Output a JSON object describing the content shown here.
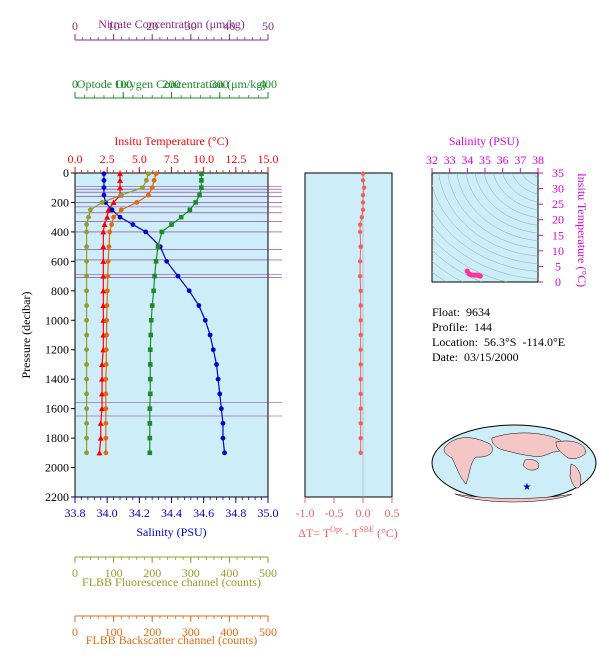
{
  "info": {
    "float_line": "Float:  9634",
    "profile_line": "Profile:  144",
    "location_line": "Location:  56.3°S  -114.0°E",
    "date_line": "Date:  03/15/2000"
  },
  "colors": {
    "panel_bg": "#cdeef8",
    "temperature": "#ff0000",
    "salinity": "#0000cc",
    "oxygen": "#1a8a2a",
    "nitrate": "#8a2a8a",
    "fluorescence": "#9a9a2a",
    "backscatter": "#e06a10",
    "delta_t": "#f06060",
    "ts_axis": "#dd00dd",
    "ts_points": "#ff3399"
  },
  "chart_data": [
    {
      "type": "line",
      "panel": "profile",
      "ylabel": "Pressure (decibar)",
      "ylim": [
        2200,
        0
      ],
      "yticks": [
        "0",
        "200",
        "400",
        "600",
        "800",
        "1000",
        "1200",
        "1400",
        "1600",
        "1800",
        "2000",
        "2200"
      ],
      "yticks_values": [
        0,
        200,
        400,
        600,
        800,
        1000,
        1200,
        1400,
        1600,
        1800,
        2000,
        2200
      ],
      "pressure": [
        5,
        50,
        100,
        150,
        200,
        250,
        300,
        350,
        400,
        500,
        600,
        700,
        800,
        900,
        1000,
        1100,
        1200,
        1300,
        1400,
        1500,
        1600,
        1700,
        1800,
        1900
      ],
      "axes": [
        {
          "key": "temperature",
          "label": "Insitu Temperature (°C)",
          "position": "top",
          "row": 0,
          "range": [
            0,
            15
          ],
          "ticks": [
            "0.0",
            "2.5",
            "5.0",
            "7.5",
            "10.0",
            "12.5",
            "15.0"
          ]
        },
        {
          "key": "oxygen",
          "label": "Optode Oxygen Concentration (μm/kg)",
          "position": "top",
          "row": 1,
          "range": [
            0,
            400
          ],
          "ticks": [
            "0",
            "100",
            "200",
            "300",
            "400"
          ]
        },
        {
          "key": "nitrate",
          "label": "Nitrate Concentration (μm/kg)",
          "position": "top",
          "row": 2,
          "range": [
            0,
            50
          ],
          "ticks": [
            "0",
            "10",
            "20",
            "30",
            "40",
            "50"
          ]
        },
        {
          "key": "salinity",
          "label": "Salinity (PSU)",
          "position": "bottom",
          "row": 0,
          "range": [
            33.8,
            35.0
          ],
          "ticks": [
            "33.8",
            "34.0",
            "34.2",
            "34.4",
            "34.6",
            "34.8",
            "35.0"
          ]
        },
        {
          "key": "fluorescence",
          "label": "FLBB Fluorescence channel (counts)",
          "position": "bottom",
          "row": 1,
          "range": [
            0,
            500
          ],
          "ticks": [
            "0",
            "100",
            "200",
            "300",
            "400",
            "500"
          ]
        },
        {
          "key": "backscatter",
          "label": "FLBB Backscatter channel (counts)",
          "position": "bottom",
          "row": 2,
          "range": [
            0,
            500
          ],
          "ticks": [
            "0",
            "100",
            "200",
            "300",
            "400",
            "500"
          ]
        }
      ],
      "series": [
        {
          "key": "temperature",
          "marker": "triangle",
          "values": [
            3.5,
            3.5,
            3.5,
            3.5,
            3.0,
            2.6,
            2.5,
            2.3,
            2.2,
            2.2,
            2.2,
            2.2,
            2.2,
            2.2,
            2.2,
            2.2,
            2.2,
            2.1,
            2.1,
            2.1,
            2.1,
            2.0,
            2.0,
            1.9
          ]
        },
        {
          "key": "salinity",
          "marker": "circle",
          "values": [
            33.98,
            33.98,
            33.98,
            33.98,
            33.99,
            34.03,
            34.08,
            34.16,
            34.24,
            34.33,
            34.37,
            34.44,
            34.51,
            34.57,
            34.61,
            34.64,
            34.66,
            34.68,
            34.69,
            34.7,
            34.71,
            34.72,
            34.72,
            34.73
          ]
        },
        {
          "key": "oxygen",
          "marker": "square",
          "values": [
            262,
            262,
            262,
            258,
            250,
            238,
            220,
            200,
            180,
            172,
            168,
            165,
            163,
            160,
            158,
            157,
            156,
            156,
            156,
            156,
            155,
            155,
            155,
            155
          ]
        },
        {
          "key": "fluorescence",
          "marker": "circle",
          "values": [
            190,
            185,
            175,
            120,
            70,
            40,
            35,
            30,
            30,
            30,
            30,
            30,
            30,
            30,
            30,
            30,
            30,
            30,
            30,
            30,
            30,
            30,
            30,
            30
          ]
        },
        {
          "key": "backscatter",
          "marker": "circle",
          "values": [
            210,
            205,
            200,
            190,
            160,
            120,
            100,
            95,
            90,
            88,
            86,
            85,
            84,
            83,
            82,
            82,
            81,
            81,
            80,
            80,
            80,
            80,
            80,
            80
          ]
        }
      ],
      "nitrate_pressures": [
        90,
        110,
        130,
        160,
        200,
        230,
        270,
        330,
        400,
        520,
        590,
        690,
        710,
        1560,
        1650
      ]
    },
    {
      "type": "scatter",
      "panel": "delta_t",
      "xlabel": "ΔT= T",
      "xlabel_sup1": "Opt",
      "xlabel_mid": " - T",
      "xlabel_sup2": "SBE",
      "xlabel_end": " (°C)",
      "xlim": [
        -1.0,
        0.5
      ],
      "xticks": [
        "-1.0",
        "-0.5",
        "0.0",
        "0.5"
      ],
      "values": [
        0.0,
        0.0,
        0.02,
        0.0,
        0.0,
        0.0,
        -0.02,
        -0.05,
        -0.05,
        -0.04,
        -0.05,
        -0.05,
        -0.04,
        -0.04,
        -0.04,
        -0.04,
        -0.04,
        -0.04,
        -0.04,
        -0.04,
        -0.04,
        -0.04,
        -0.04,
        -0.04
      ]
    },
    {
      "type": "scatter",
      "panel": "ts_diagram",
      "title": "Salinity (PSU)",
      "ylabel": "Insitu Temperature (°C)",
      "xlim": [
        32,
        38
      ],
      "ylim": [
        0,
        35
      ],
      "xticks": [
        "32",
        "33",
        "34",
        "35",
        "36",
        "37",
        "38"
      ],
      "yticks": [
        "0",
        "5",
        "10",
        "15",
        "20",
        "25",
        "30",
        "35"
      ],
      "points": [
        {
          "x": 33.99,
          "y": 3.5
        },
        {
          "x": 34.1,
          "y": 2.6
        },
        {
          "x": 34.24,
          "y": 2.3
        },
        {
          "x": 34.4,
          "y": 2.2
        },
        {
          "x": 34.55,
          "y": 2.2
        },
        {
          "x": 34.65,
          "y": 2.1
        },
        {
          "x": 34.73,
          "y": 1.9
        }
      ]
    }
  ]
}
